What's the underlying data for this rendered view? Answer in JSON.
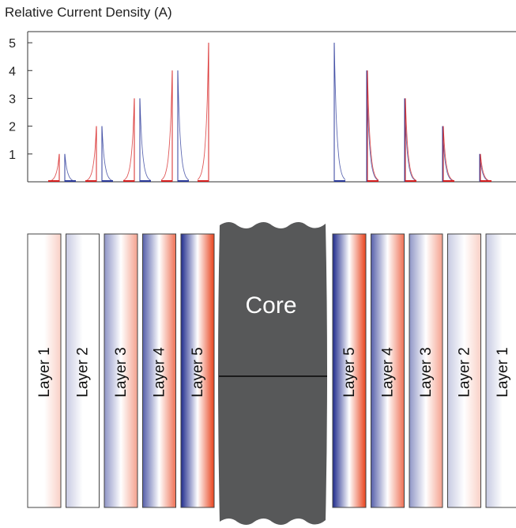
{
  "chart_data": {
    "type": "line",
    "title": "Relative Current Density (A)",
    "ylim": [
      0,
      5.4
    ],
    "yticks": [
      1,
      2,
      3,
      4,
      5
    ],
    "grid": false,
    "series": [
      {
        "color": "#d62020",
        "side": "left",
        "peaks": [
          {
            "layer": 1,
            "value": 1
          },
          {
            "layer": 2,
            "value": 2
          },
          {
            "layer": 3,
            "value": 3
          },
          {
            "layer": 4,
            "value": 4
          },
          {
            "layer": 5,
            "value": 5
          }
        ]
      },
      {
        "color": "#2b3a9a",
        "side": "left",
        "peaks": [
          {
            "layer": 1,
            "value": 1
          },
          {
            "layer": 2,
            "value": 2
          },
          {
            "layer": 3,
            "value": 3
          },
          {
            "layer": 4,
            "value": 4
          }
        ]
      },
      {
        "color": "#2b3a9a",
        "side": "right",
        "peaks": [
          {
            "layer": 5,
            "value": 5
          },
          {
            "layer": 4,
            "value": 4
          },
          {
            "layer": 3,
            "value": 3
          },
          {
            "layer": 2,
            "value": 2
          },
          {
            "layer": 1,
            "value": 1
          }
        ]
      },
      {
        "color": "#d62020",
        "side": "right",
        "peaks": [
          {
            "layer": 4,
            "value": 4
          },
          {
            "layer": 3,
            "value": 3
          },
          {
            "layer": 2,
            "value": 2
          },
          {
            "layer": 1,
            "value": 1
          }
        ]
      }
    ]
  },
  "diagram": {
    "core_label": "Core",
    "left_layers": [
      {
        "label": "Layer 1",
        "blue": 0.0,
        "red": 0.25
      },
      {
        "label": "Layer 2",
        "blue": 0.25,
        "red": 0.0
      },
      {
        "label": "Layer 3",
        "blue": 0.5,
        "red": 0.5
      },
      {
        "label": "Layer 4",
        "blue": 0.75,
        "red": 0.75
      },
      {
        "label": "Layer 5",
        "blue": 1.0,
        "red": 1.0
      }
    ],
    "right_layers": [
      {
        "label": "Layer 5",
        "blue": 1.0,
        "red": 1.0
      },
      {
        "label": "Layer 4",
        "blue": 0.75,
        "red": 0.75
      },
      {
        "label": "Layer 3",
        "blue": 0.5,
        "red": 0.5
      },
      {
        "label": "Layer 2",
        "blue": 0.25,
        "red": 0.25
      },
      {
        "label": "Layer 1",
        "blue": 0.25,
        "red": 0.0
      }
    ],
    "colors": {
      "blue": "#1e2a8c",
      "red": "#e8421c",
      "core": "#575859"
    }
  }
}
